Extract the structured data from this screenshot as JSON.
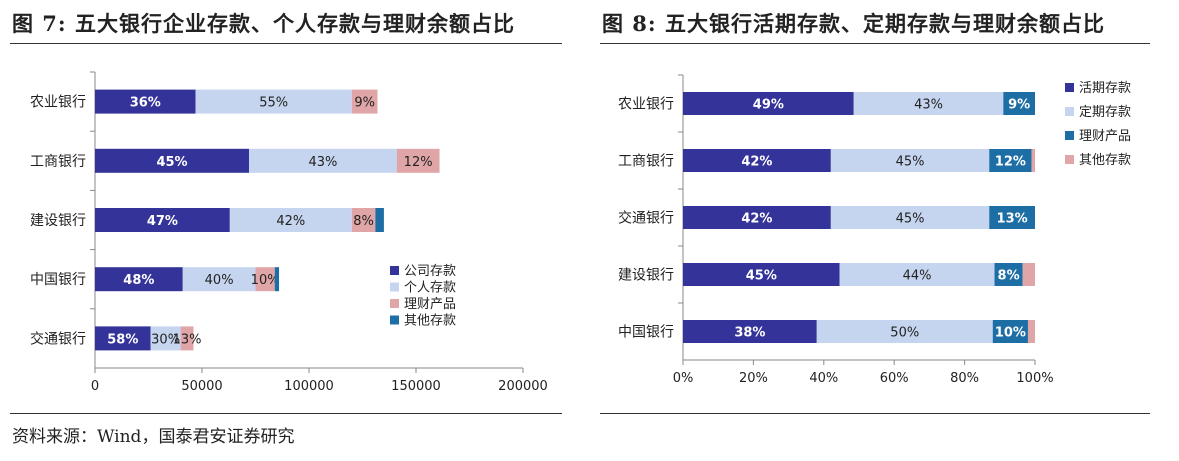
{
  "left_title": "图 7:  五大银行企业存款、个人存款与理财余额占比",
  "right_title": "图 8:    五大银行活期存款、定期存款与理财余额占比",
  "source": "资料来源：Wind，国泰君安证券研究",
  "colors": {
    "navy": "#33339a",
    "lightblue": "#c6d5ef",
    "pink": "#e0a5a7",
    "teal": "#1e6ea6"
  },
  "chart_data": [
    {
      "type": "bar",
      "orientation": "horizontal",
      "stacked": true,
      "title": "",
      "xlabel": "",
      "ylabel": "",
      "xlim": [
        0,
        200000
      ],
      "xticks": [
        0,
        50000,
        100000,
        150000,
        200000
      ],
      "xtick_labels": [
        "0",
        "50000",
        "100000",
        "150000",
        "200000"
      ],
      "categories": [
        "农业银行",
        "工商银行",
        "建设银行",
        "中国银行",
        "交通银行"
      ],
      "series": [
        {
          "name": "公司存款",
          "color": "#33339a",
          "values": [
            47000,
            72000,
            63000,
            41000,
            26000
          ],
          "labels": [
            "36%",
            "45%",
            "47%",
            "48%",
            "58%"
          ]
        },
        {
          "name": "个人存款",
          "color": "#c6d5ef",
          "values": [
            73000,
            69000,
            57000,
            34000,
            14000
          ],
          "labels": [
            "55%",
            "43%",
            "42%",
            "40%",
            "30%"
          ]
        },
        {
          "name": "理财产品",
          "color": "#e0a5a7",
          "values": [
            12000,
            20000,
            11000,
            9000,
            6000
          ],
          "labels": [
            "9%",
            "12%",
            "8%",
            "10%",
            "13%"
          ]
        },
        {
          "name": "其他存款",
          "color": "#1e6ea6",
          "values": [
            0,
            0,
            4000,
            2000,
            0
          ],
          "labels": [
            "",
            "",
            "",
            "",
            ""
          ]
        }
      ],
      "legend": "right-lower"
    },
    {
      "type": "bar",
      "orientation": "horizontal",
      "stacked": true,
      "title": "",
      "xlabel": "",
      "ylabel": "",
      "xlim": [
        0,
        100
      ],
      "xticks": [
        0,
        20,
        40,
        60,
        80,
        100
      ],
      "xtick_labels": [
        "0%",
        "20%",
        "40%",
        "60%",
        "80%",
        "100%"
      ],
      "categories": [
        "农业银行",
        "工商银行",
        "交通银行",
        "建设银行",
        "中国银行"
      ],
      "series": [
        {
          "name": "活期存款",
          "color": "#33339a",
          "values": [
            48.5,
            42,
            42,
            44.5,
            38
          ],
          "labels": [
            "49%",
            "42%",
            "42%",
            "45%",
            "38%"
          ]
        },
        {
          "name": "定期存款",
          "color": "#c6d5ef",
          "values": [
            42.5,
            45,
            45,
            44,
            50
          ],
          "labels": [
            "43%",
            "45%",
            "45%",
            "44%",
            "50%"
          ]
        },
        {
          "name": "理财产品",
          "color": "#1e6ea6",
          "values": [
            9,
            12,
            13,
            8,
            10
          ],
          "labels": [
            "9%",
            "12%",
            "13%",
            "8%",
            "10%"
          ]
        },
        {
          "name": "其他存款",
          "color": "#e0a5a7",
          "values": [
            0,
            1,
            0,
            3.5,
            2
          ],
          "labels": [
            "",
            "",
            "",
            "",
            ""
          ]
        }
      ],
      "legend": "right-upper"
    }
  ]
}
